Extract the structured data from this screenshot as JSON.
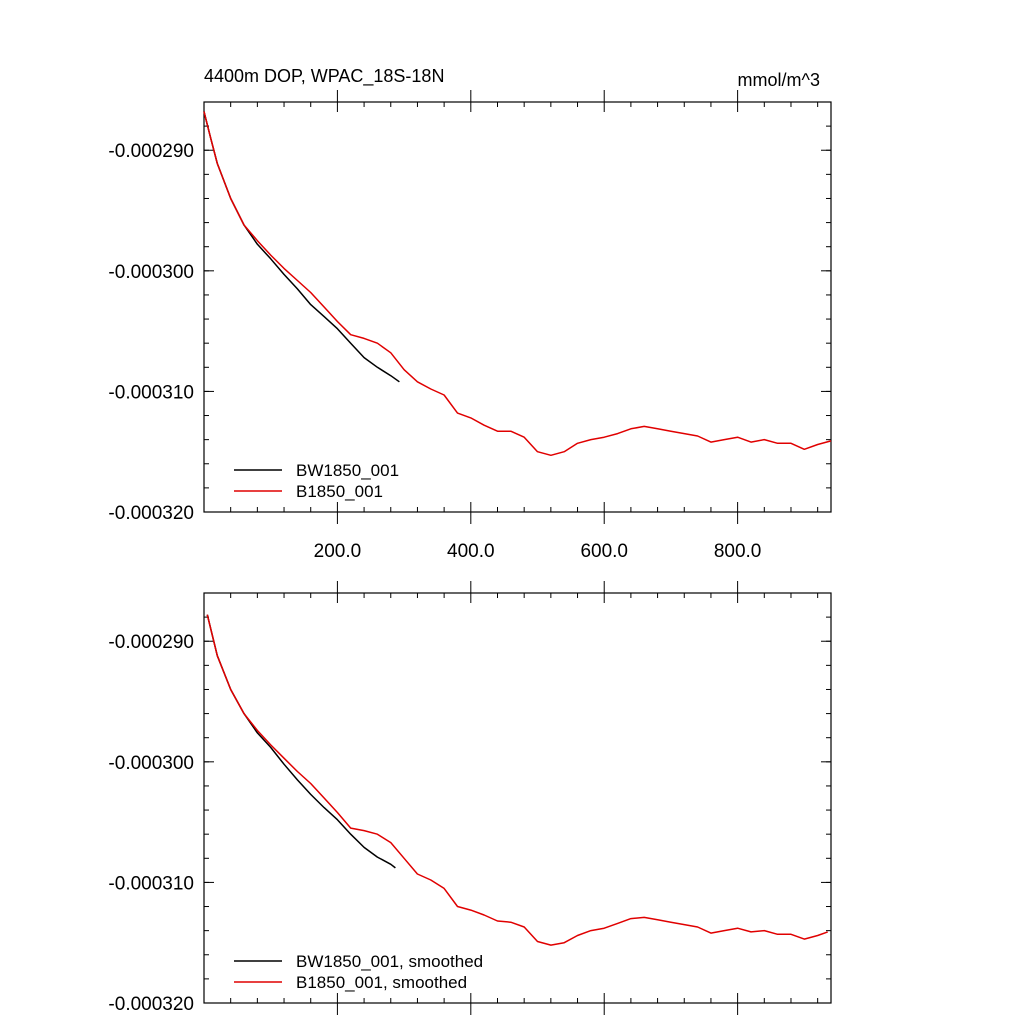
{
  "title_left": "4400m DOP, WPAC_18S-18N",
  "title_right": "mmol/m^3",
  "colors": {
    "BW1850_001": "#000000",
    "B1850_001": "#e00000"
  },
  "chart_data": [
    {
      "type": "line",
      "xlim": [
        0,
        940
      ],
      "ylim": [
        -0.00032,
        -0.000286
      ],
      "x_ticks": [
        "200.0",
        "400.0",
        "600.0",
        "800.0"
      ],
      "x_tick_values": [
        200,
        400,
        600,
        800
      ],
      "y_ticks": [
        "-0.000290",
        "-0.000300",
        "-0.000310",
        "-0.000320"
      ],
      "y_tick_values": [
        -0.00029,
        -0.0003,
        -0.00031,
        -0.00032
      ],
      "legend": [
        "BW1850_001",
        "B1850_001"
      ],
      "legend_position": "bottom-left",
      "series": [
        {
          "name": "BW1850_001",
          "color": "#000000",
          "x": [
            0,
            10,
            20,
            40,
            60,
            80,
            100,
            120,
            140,
            160,
            180,
            200,
            220,
            240,
            260,
            280,
            293
          ],
          "y": [
            -0.0002868,
            -0.000289,
            -0.0002911,
            -0.000294,
            -0.0002962,
            -0.0002978,
            -0.000299,
            -0.0003003,
            -0.0003015,
            -0.0003028,
            -0.0003038,
            -0.0003048,
            -0.000306,
            -0.0003072,
            -0.000308,
            -0.0003087,
            -0.0003092
          ]
        },
        {
          "name": "B1850_001",
          "color": "#e00000",
          "x": [
            0,
            10,
            20,
            40,
            60,
            80,
            100,
            120,
            140,
            160,
            180,
            200,
            220,
            240,
            260,
            280,
            300,
            320,
            340,
            360,
            380,
            400,
            420,
            440,
            460,
            480,
            500,
            520,
            540,
            560,
            580,
            600,
            620,
            640,
            660,
            680,
            700,
            720,
            740,
            760,
            780,
            800,
            820,
            840,
            860,
            880,
            900,
            920,
            940
          ],
          "y": [
            -0.0002868,
            -0.000289,
            -0.0002911,
            -0.000294,
            -0.0002962,
            -0.0002975,
            -0.0002987,
            -0.0002998,
            -0.0003008,
            -0.0003018,
            -0.000303,
            -0.0003042,
            -0.0003053,
            -0.0003056,
            -0.000306,
            -0.0003068,
            -0.0003082,
            -0.0003092,
            -0.0003098,
            -0.0003103,
            -0.0003118,
            -0.0003122,
            -0.0003128,
            -0.0003133,
            -0.0003133,
            -0.0003138,
            -0.000315,
            -0.0003153,
            -0.000315,
            -0.0003143,
            -0.000314,
            -0.0003138,
            -0.0003135,
            -0.0003131,
            -0.0003129,
            -0.0003131,
            -0.0003133,
            -0.0003135,
            -0.0003137,
            -0.0003142,
            -0.000314,
            -0.0003138,
            -0.0003142,
            -0.000314,
            -0.0003143,
            -0.0003143,
            -0.0003148,
            -0.0003144,
            -0.0003141
          ]
        }
      ]
    },
    {
      "type": "line",
      "xlim": [
        0,
        940
      ],
      "ylim": [
        -0.00032,
        -0.000286
      ],
      "y_ticks": [
        "-0.000290",
        "-0.000300",
        "-0.000310",
        "-0.000320"
      ],
      "y_tick_values": [
        -0.00029,
        -0.0003,
        -0.00031,
        -0.00032
      ],
      "legend": [
        "BW1850_001, smoothed",
        "B1850_001, smoothed"
      ],
      "legend_position": "bottom-left",
      "series": [
        {
          "name": "BW1850_001, smoothed",
          "color": "#000000",
          "x": [
            5,
            20,
            40,
            60,
            80,
            100,
            120,
            140,
            160,
            180,
            200,
            220,
            240,
            260,
            280,
            287
          ],
          "y": [
            -0.0002878,
            -0.0002912,
            -0.000294,
            -0.000296,
            -0.0002976,
            -0.0002988,
            -0.0003002,
            -0.0003015,
            -0.0003027,
            -0.0003038,
            -0.0003048,
            -0.000306,
            -0.0003071,
            -0.0003079,
            -0.0003085,
            -0.0003088
          ]
        },
        {
          "name": "B1850_001, smoothed",
          "color": "#e00000",
          "x": [
            5,
            20,
            40,
            60,
            80,
            100,
            120,
            140,
            160,
            180,
            200,
            220,
            240,
            260,
            280,
            300,
            320,
            340,
            360,
            380,
            400,
            420,
            440,
            460,
            480,
            500,
            520,
            540,
            560,
            580,
            600,
            620,
            640,
            660,
            680,
            700,
            720,
            740,
            760,
            780,
            800,
            820,
            840,
            860,
            880,
            900,
            920,
            935
          ],
          "y": [
            -0.0002878,
            -0.0002912,
            -0.000294,
            -0.000296,
            -0.0002974,
            -0.0002986,
            -0.0002997,
            -0.0003008,
            -0.0003018,
            -0.000303,
            -0.0003042,
            -0.0003055,
            -0.0003057,
            -0.000306,
            -0.0003067,
            -0.000308,
            -0.0003093,
            -0.0003098,
            -0.0003105,
            -0.000312,
            -0.0003123,
            -0.0003127,
            -0.0003132,
            -0.0003133,
            -0.0003137,
            -0.0003149,
            -0.0003152,
            -0.000315,
            -0.0003144,
            -0.000314,
            -0.0003138,
            -0.0003134,
            -0.000313,
            -0.0003129,
            -0.0003131,
            -0.0003133,
            -0.0003135,
            -0.0003137,
            -0.0003142,
            -0.000314,
            -0.0003138,
            -0.0003141,
            -0.000314,
            -0.0003143,
            -0.0003143,
            -0.0003147,
            -0.0003144,
            -0.0003141
          ]
        }
      ]
    }
  ]
}
